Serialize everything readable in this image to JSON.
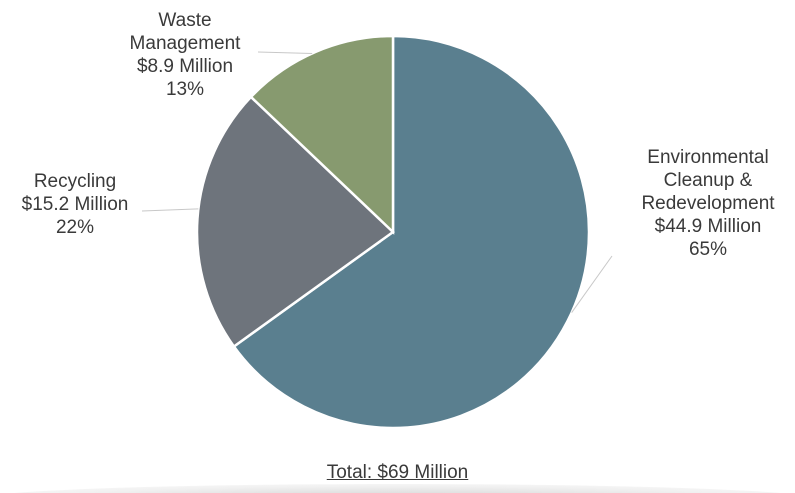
{
  "chart_data": {
    "type": "pie",
    "title": "",
    "total_label": "Total: $69 Million",
    "start_angle_deg": 0,
    "slices": [
      {
        "label": "Environmental Cleanup & Redevelopment",
        "label_lines": [
          "Environmental",
          "Cleanup &",
          "Redevelopment"
        ],
        "value_text": "$44.9 Million",
        "percent_text": "65%",
        "value": 44.9,
        "color": "#5a7f8f"
      },
      {
        "label": "Recycling",
        "label_lines": [
          "Recycling"
        ],
        "value_text": "$15.2 Million",
        "percent_text": "22%",
        "value": 15.2,
        "color": "#6e747c"
      },
      {
        "label": "Waste Management",
        "label_lines": [
          "Waste",
          "Management"
        ],
        "value_text": "$8.9 Million",
        "percent_text": "13%",
        "value": 8.9,
        "color": "#879a6f"
      }
    ],
    "legend": "none"
  }
}
